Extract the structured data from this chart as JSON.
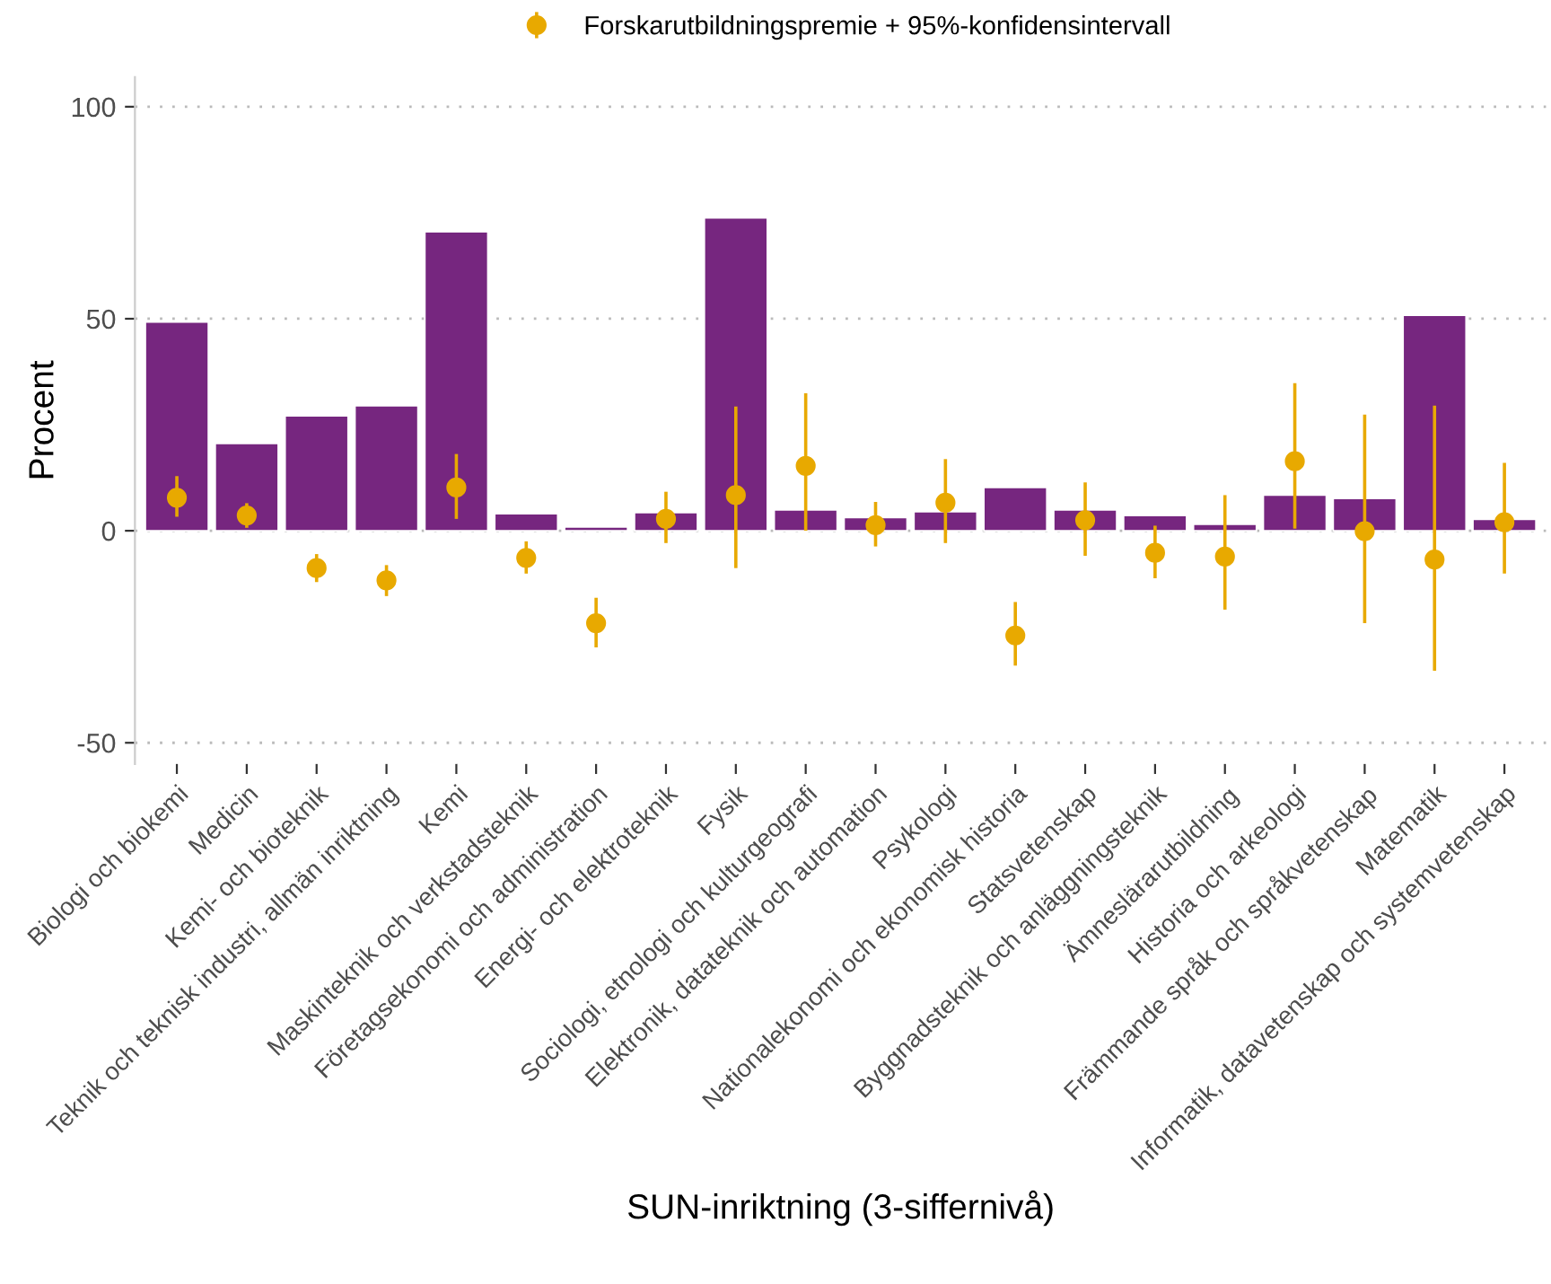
{
  "chart_data": {
    "type": "bar",
    "xlabel": "SUN-inriktning (3-siffernivå)",
    "ylabel": "Procent",
    "categories": [
      "Biologi och biokemi",
      "Medicin",
      "Kemi- och bioteknik",
      "Teknik och teknisk industri, allmän inriktning",
      "Kemi",
      "Maskinteknik och verkstadsteknik",
      "Företagsekonomi och administration",
      "Energi- och elektroteknik",
      "Fysik",
      "Sociologi, etnologi och kulturgeografi",
      "Elektronik, datateknik och automation",
      "Psykologi",
      "Nationalekonomi och ekonomisk historia",
      "Statsvetenskap",
      "Byggnadsteknik och anläggningsteknik",
      "Ämneslärarutbildning",
      "Historia och arkeologi",
      "Främmande språk och språkvetenskap",
      "Matematik",
      "Informatik, datavetenskap och systemvetenskap"
    ],
    "series": [
      {
        "color": "#76267f",
        "values": [
          49.2,
          20.6,
          27.1,
          29.5,
          70.5,
          4.0,
          0.9,
          4.3,
          73.8,
          4.9,
          3.1,
          4.5,
          10.2,
          4.9,
          3.6,
          1.5,
          8.4,
          7.6,
          50.8,
          2.7
        ]
      },
      {
        "type": "scatter",
        "name": "Forskarutbildningspremie + 95%-konfidensintervall",
        "color": "#e8a900",
        "marker": "circle",
        "values": [
          7.8,
          3.6,
          -8.8,
          -11.7,
          10.2,
          -6.4,
          -21.8,
          2.8,
          8.4,
          15.3,
          1.3,
          6.6,
          -24.7,
          2.5,
          -5.2,
          -6.1,
          16.4,
          -0.1,
          -6.8,
          2.0
        ],
        "errors": [
          [
            3.3,
            12.9
          ],
          [
            0.7,
            6.5
          ],
          [
            -12.1,
            -5.5
          ],
          [
            -15.4,
            -8.1
          ],
          [
            2.8,
            18.1
          ],
          [
            -10.1,
            -2.5
          ],
          [
            -27.5,
            -15.8
          ],
          [
            -2.9,
            9.2
          ],
          [
            -8.8,
            29.3
          ],
          [
            0.0,
            32.4
          ],
          [
            -3.7,
            6.8
          ],
          [
            -2.9,
            16.9
          ],
          [
            -31.8,
            -16.8
          ],
          [
            -5.9,
            11.4
          ],
          [
            -11.2,
            1.2
          ],
          [
            -18.6,
            8.4
          ],
          [
            0.5,
            34.8
          ],
          [
            -21.8,
            27.4
          ],
          [
            -33.0,
            29.5
          ],
          [
            -10.1,
            16.0
          ]
        ]
      }
    ],
    "ylim": [
      -55,
      107
    ],
    "yticks": [
      -50,
      0,
      50,
      100
    ],
    "grid": "y",
    "legend": "top"
  }
}
